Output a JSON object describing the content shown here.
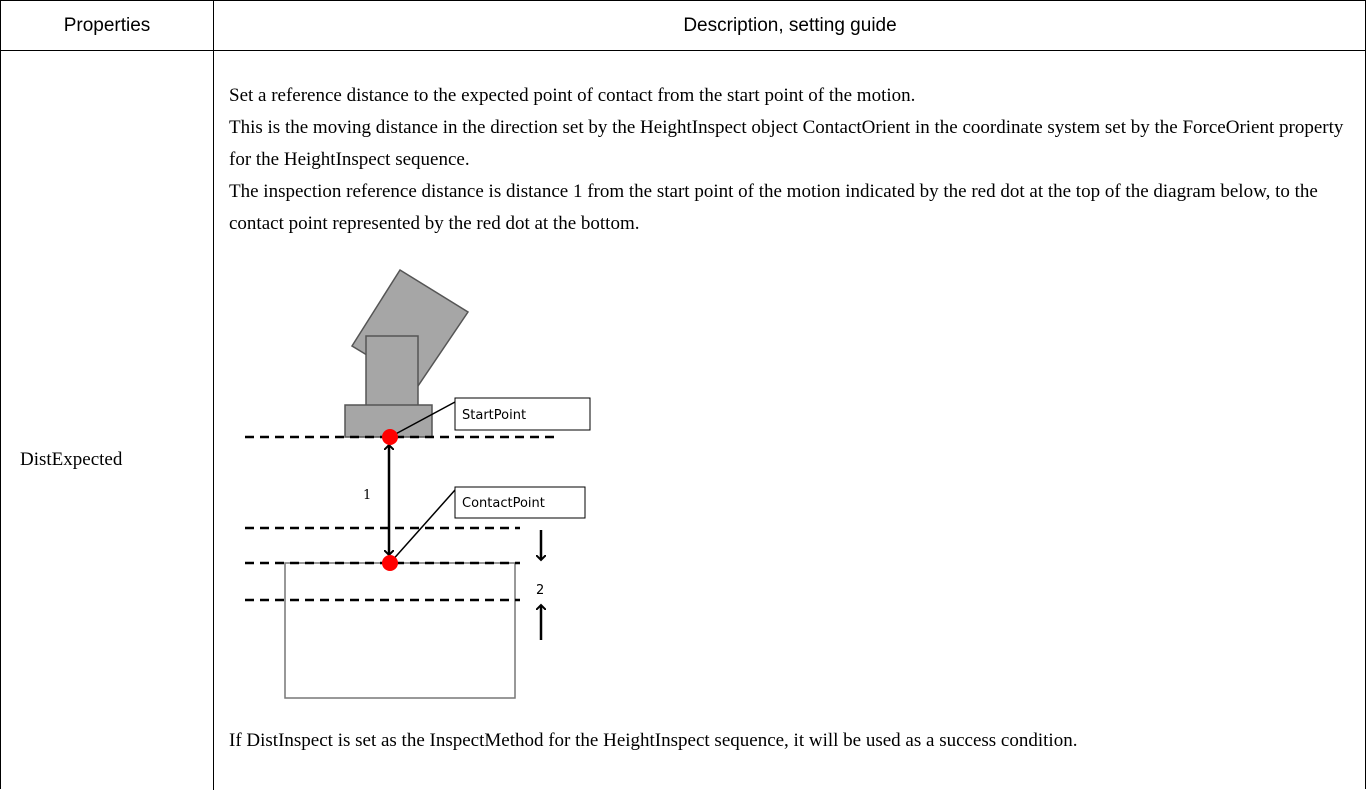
{
  "table": {
    "columns": [
      "Properties",
      "Description, setting guide"
    ],
    "rows": [
      {
        "property": "DistExpected",
        "description": [
          "Set a reference distance to the expected point of contact from the start point of the motion.",
          "This is the moving distance in the direction set by the HeightInspect object ContactOrient in the coordinate system set by the ForceOrient property for the HeightInspect sequence.",
          "The inspection reference distance is distance 1 from the start point of the motion indicated by the red dot at the top of the diagram below, to the contact point represented by the red dot at the bottom."
        ],
        "diagram": {
          "start_label": "StartPoint",
          "contact_label": "ContactPoint",
          "distance_1": "1",
          "distance_2": "2"
        },
        "note": "If DistInspect is set as the InspectMethod for the HeightInspect sequence, it will be used as a success condition."
      }
    ]
  }
}
